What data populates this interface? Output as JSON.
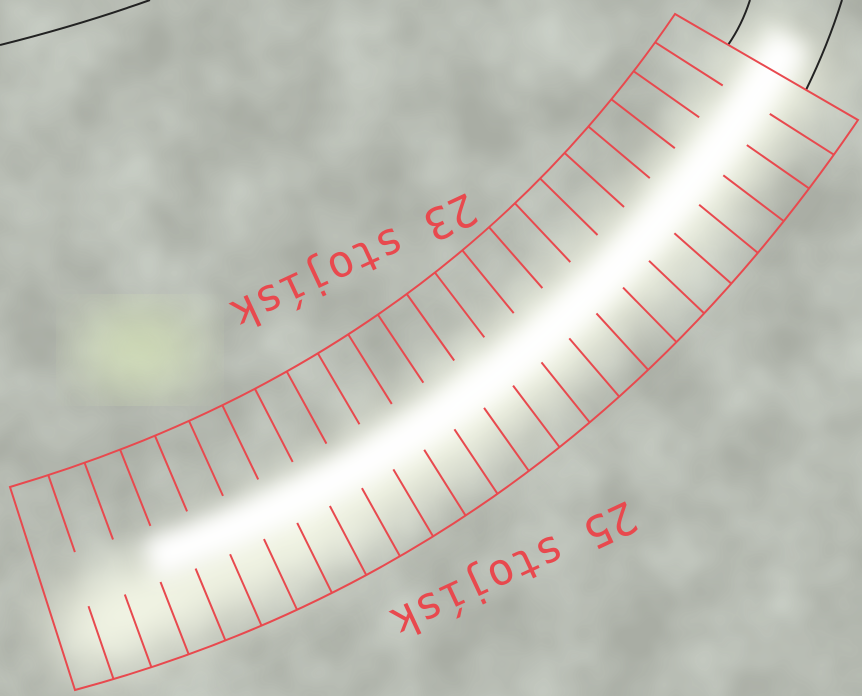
{
  "labels": [
    {
      "text": "23 stojísk"
    },
    {
      "text": "25 stojísk"
    }
  ]
}
